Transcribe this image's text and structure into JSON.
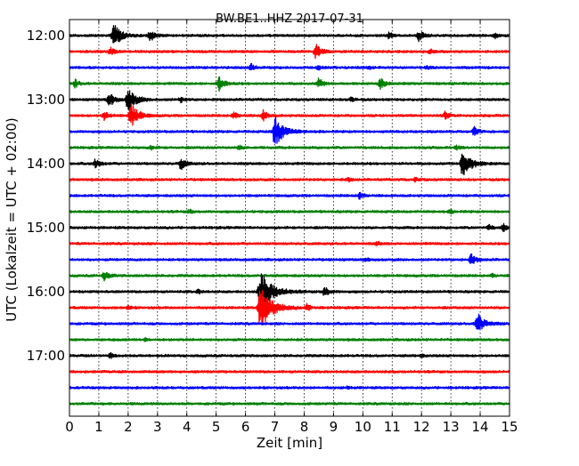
{
  "chart_data": {
    "type": "line",
    "title": "BW.BE1..HHZ 2017-07-31",
    "xlabel": "Zeit  [min]",
    "ylabel": "UTC (Lokalzeit = UTC + 02:00)",
    "xlim": [
      0,
      15
    ],
    "x_ticks": [
      0,
      1,
      2,
      3,
      4,
      5,
      6,
      7,
      8,
      9,
      10,
      11,
      12,
      13,
      14,
      15
    ],
    "y_tick_labels": [
      "12:00",
      "13:00",
      "14:00",
      "15:00",
      "16:00",
      "17:00"
    ],
    "vertical_grid": "dotted",
    "trace_interval_min": 15,
    "trace_colors": [
      "#000000",
      "#ff0000",
      "#0000ff",
      "#008000"
    ],
    "traces": [
      {
        "start": "12:00",
        "color": "#000000",
        "events": [
          {
            "t": 1.5,
            "amp": 1.0
          },
          {
            "t": 2.75,
            "amp": 0.5
          },
          {
            "t": 10.9,
            "amp": 0.25
          },
          {
            "t": 11.9,
            "amp": 0.45
          },
          {
            "t": 14.5,
            "amp": 0.2
          }
        ]
      },
      {
        "start": "12:15",
        "color": "#ff0000",
        "events": [
          {
            "t": 1.4,
            "amp": 0.3
          },
          {
            "t": 8.4,
            "amp": 0.6
          },
          {
            "t": 12.3,
            "amp": 0.2
          }
        ]
      },
      {
        "start": "12:30",
        "color": "#0000ff",
        "events": [
          {
            "t": 6.2,
            "amp": 0.25
          },
          {
            "t": 8.5,
            "amp": 0.2
          },
          {
            "t": 10.2,
            "amp": 0.15
          },
          {
            "t": 12.2,
            "amp": 0.15
          }
        ]
      },
      {
        "start": "12:45",
        "color": "#008000",
        "events": [
          {
            "t": 0.2,
            "amp": 0.3
          },
          {
            "t": 5.1,
            "amp": 0.6
          },
          {
            "t": 8.5,
            "amp": 0.4
          },
          {
            "t": 10.6,
            "amp": 0.45
          }
        ]
      },
      {
        "start": "13:00",
        "color": "#000000",
        "events": [
          {
            "t": 1.35,
            "amp": 0.6
          },
          {
            "t": 2.0,
            "amp": 1.0
          },
          {
            "t": 3.8,
            "amp": 0.2
          },
          {
            "t": 9.6,
            "amp": 0.2
          }
        ]
      },
      {
        "start": "13:15",
        "color": "#ff0000",
        "events": [
          {
            "t": 1.2,
            "amp": 0.4
          },
          {
            "t": 2.1,
            "amp": 1.0
          },
          {
            "t": 5.6,
            "amp": 0.3
          },
          {
            "t": 6.6,
            "amp": 0.4
          },
          {
            "t": 12.8,
            "amp": 0.3
          }
        ]
      },
      {
        "start": "13:30",
        "color": "#0000ff",
        "events": [
          {
            "t": 7.0,
            "amp": 1.3
          },
          {
            "t": 13.8,
            "amp": 0.35
          }
        ]
      },
      {
        "start": "13:45",
        "color": "#008000",
        "events": [
          {
            "t": 2.8,
            "amp": 0.15
          },
          {
            "t": 5.8,
            "amp": 0.15
          },
          {
            "t": 13.2,
            "amp": 0.15
          }
        ]
      },
      {
        "start": "14:00",
        "color": "#000000",
        "events": [
          {
            "t": 0.9,
            "amp": 0.4
          },
          {
            "t": 3.8,
            "amp": 0.5
          },
          {
            "t": 13.4,
            "amp": 1.2
          }
        ]
      },
      {
        "start": "14:15",
        "color": "#ff0000",
        "events": [
          {
            "t": 9.5,
            "amp": 0.15
          },
          {
            "t": 11.8,
            "amp": 0.15
          }
        ]
      },
      {
        "start": "14:30",
        "color": "#0000ff",
        "events": [
          {
            "t": 9.9,
            "amp": 0.3
          }
        ]
      },
      {
        "start": "14:45",
        "color": "#008000",
        "events": [
          {
            "t": 4.1,
            "amp": 0.15
          },
          {
            "t": 13.0,
            "amp": 0.15
          }
        ]
      },
      {
        "start": "15:00",
        "color": "#000000",
        "events": [
          {
            "t": 14.3,
            "amp": 0.2
          },
          {
            "t": 14.8,
            "amp": 0.3
          }
        ]
      },
      {
        "start": "15:15",
        "color": "#ff0000",
        "events": [
          {
            "t": 10.5,
            "amp": 0.15
          }
        ]
      },
      {
        "start": "15:30",
        "color": "#0000ff",
        "events": [
          {
            "t": 10.1,
            "amp": 0.15
          },
          {
            "t": 13.7,
            "amp": 0.45
          }
        ]
      },
      {
        "start": "15:45",
        "color": "#008000",
        "events": [
          {
            "t": 1.2,
            "amp": 0.4
          },
          {
            "t": 14.4,
            "amp": 0.15
          }
        ]
      },
      {
        "start": "16:00",
        "color": "#000000",
        "events": [
          {
            "t": 4.4,
            "amp": 0.15
          },
          {
            "t": 6.5,
            "amp": 1.8
          },
          {
            "t": 8.7,
            "amp": 0.4
          }
        ]
      },
      {
        "start": "16:15",
        "color": "#ff0000",
        "events": [
          {
            "t": 2.0,
            "amp": 0.15
          },
          {
            "t": 6.5,
            "amp": 1.8
          },
          {
            "t": 8.1,
            "amp": 0.25
          }
        ]
      },
      {
        "start": "16:30",
        "color": "#0000ff",
        "events": [
          {
            "t": 13.9,
            "amp": 0.9
          }
        ]
      },
      {
        "start": "16:45",
        "color": "#008000",
        "events": [
          {
            "t": 2.6,
            "amp": 0.1
          }
        ]
      },
      {
        "start": "17:00",
        "color": "#000000",
        "events": [
          {
            "t": 1.4,
            "amp": 0.2
          },
          {
            "t": 12.0,
            "amp": 0.1
          }
        ]
      },
      {
        "start": "17:15",
        "color": "#ff0000",
        "events": []
      },
      {
        "start": "17:30",
        "color": "#0000ff",
        "events": [
          {
            "t": 9.5,
            "amp": 0.08
          }
        ]
      },
      {
        "start": "17:45",
        "color": "#008000",
        "events": []
      }
    ]
  }
}
